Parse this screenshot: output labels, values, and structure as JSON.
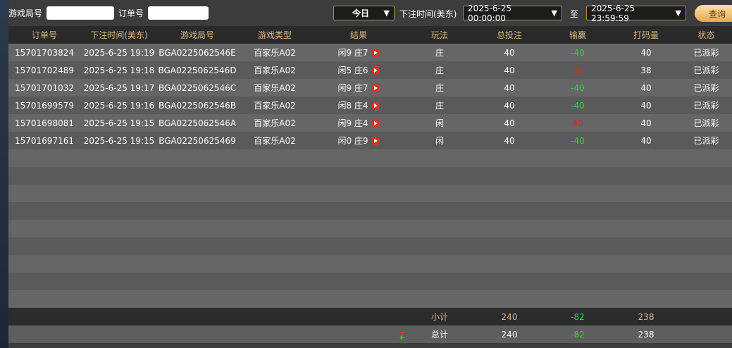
{
  "filters": {
    "game_round_label": "游戏局号",
    "game_round_value": "",
    "order_label": "订单号",
    "order_value": "",
    "range_select": "今日",
    "bet_time_label": "下注时间(美东)",
    "start_time": "2025-6-25 00:00:00",
    "to_label": "至",
    "end_time": "2025-6-25 23:59:59",
    "query_button": "查询"
  },
  "table": {
    "headers": [
      "订单号",
      "下注时间(美东)",
      "游戏局号",
      "游戏类型",
      "结果",
      "玩法",
      "总投注",
      "输赢",
      "打码量",
      "状态"
    ],
    "rows": [
      [
        "15701703824",
        "2025-6-25 19:19",
        "BGA0225062546E",
        "百家乐A02",
        "闲9 庄7",
        "庄",
        "40",
        "-40",
        "40",
        "已派彩"
      ],
      [
        "15701702489",
        "2025-6-25 19:18",
        "BGA0225062546D",
        "百家乐A02",
        "闲5 庄6",
        "庄",
        "40",
        "38",
        "38",
        "已派彩"
      ],
      [
        "15701701032",
        "2025-6-25 19:17",
        "BGA0225062546C",
        "百家乐A02",
        "闲9 庄7",
        "庄",
        "40",
        "-40",
        "40",
        "已派彩"
      ],
      [
        "15701699579",
        "2025-6-25 19:16",
        "BGA0225062546B",
        "百家乐A02",
        "闲8 庄4",
        "庄",
        "40",
        "-40",
        "40",
        "已派彩"
      ],
      [
        "15701698081",
        "2025-6-25 19:15",
        "BGA0225062546A",
        "百家乐A02",
        "闲9 庄4",
        "闲",
        "40",
        "40",
        "40",
        "已派彩"
      ],
      [
        "15701697161",
        "2025-6-25 19:15",
        "BGA02250625469",
        "百家乐A02",
        "闲0 庄9",
        "闲",
        "40",
        "-40",
        "40",
        "已派彩"
      ]
    ],
    "empty_rows": 9,
    "subtotal": {
      "label": "小计",
      "total_bet": "240",
      "win_loss": "-82",
      "valid_bet": "238"
    },
    "total": {
      "label": "总计",
      "total_bet": "240",
      "win_loss": "-82",
      "valid_bet": "238"
    }
  },
  "colors": {
    "win_negative": "#33d633",
    "win_positive": "#d42a2a",
    "header_text": "#d6b98a",
    "accent": "#e8a850"
  }
}
